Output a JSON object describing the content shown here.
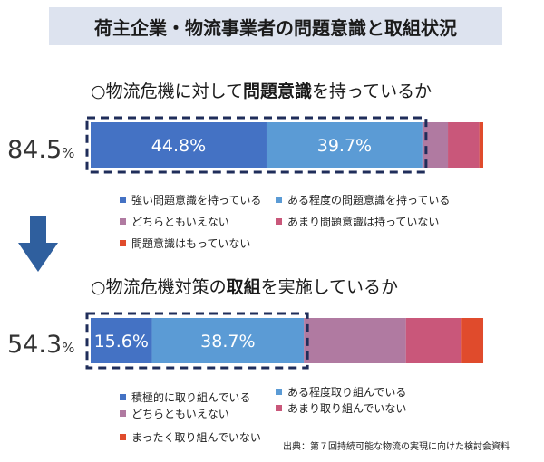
{
  "title": "荷主企業・物流事業者の問題意識と取組状況",
  "source": "出典：第７回持続可能な物流の実現に向けた検討会資料",
  "colors": {
    "title_band": "#dde3ef",
    "strong": "#4472c4",
    "medium": "#5b9bd5",
    "neutral": "#b07aa1",
    "weak": "#c9577a",
    "none": "#e04b2c",
    "dash": "#1f2d5a",
    "arrow": "#2f5f9e"
  },
  "chart_data": [
    {
      "type": "bar",
      "orientation": "horizontal-stacked",
      "question_pre": "○物流危機に対して",
      "question_bold": "問題意識",
      "question_post": "を持っているか",
      "highlight_total": "84.5",
      "highlight_unit": "%",
      "xlim": [
        0,
        100
      ],
      "series": [
        {
          "name": "強い問題意識を持っている",
          "value": 44.8,
          "label": "44.8%"
        },
        {
          "name": "ある程度の問題意識を持っている",
          "value": 39.7,
          "label": "39.7%"
        },
        {
          "name": "どちらともいえない",
          "value": 6.5,
          "label": ""
        },
        {
          "name": "あまり問題意識は持っていない",
          "value": 8.0,
          "label": ""
        },
        {
          "name": "問題意識はもっていない",
          "value": 1.0,
          "label": ""
        }
      ]
    },
    {
      "type": "bar",
      "orientation": "horizontal-stacked",
      "question_pre": "○物流危機対策の",
      "question_bold": "取組",
      "question_post": "を実施しているか",
      "highlight_total": "54.3",
      "highlight_unit": "%",
      "xlim": [
        0,
        100
      ],
      "series": [
        {
          "name": "積極的に取り組んでいる",
          "value": 15.6,
          "label": "15.6%"
        },
        {
          "name": "ある程度取り組んでいる",
          "value": 38.7,
          "label": "38.7%"
        },
        {
          "name": "どちらともいえない",
          "value": 26.0,
          "label": ""
        },
        {
          "name": "あまり取り組んでいない",
          "value": 14.2,
          "label": ""
        },
        {
          "name": "まったく取り組んでいない",
          "value": 5.5,
          "label": ""
        }
      ]
    }
  ]
}
